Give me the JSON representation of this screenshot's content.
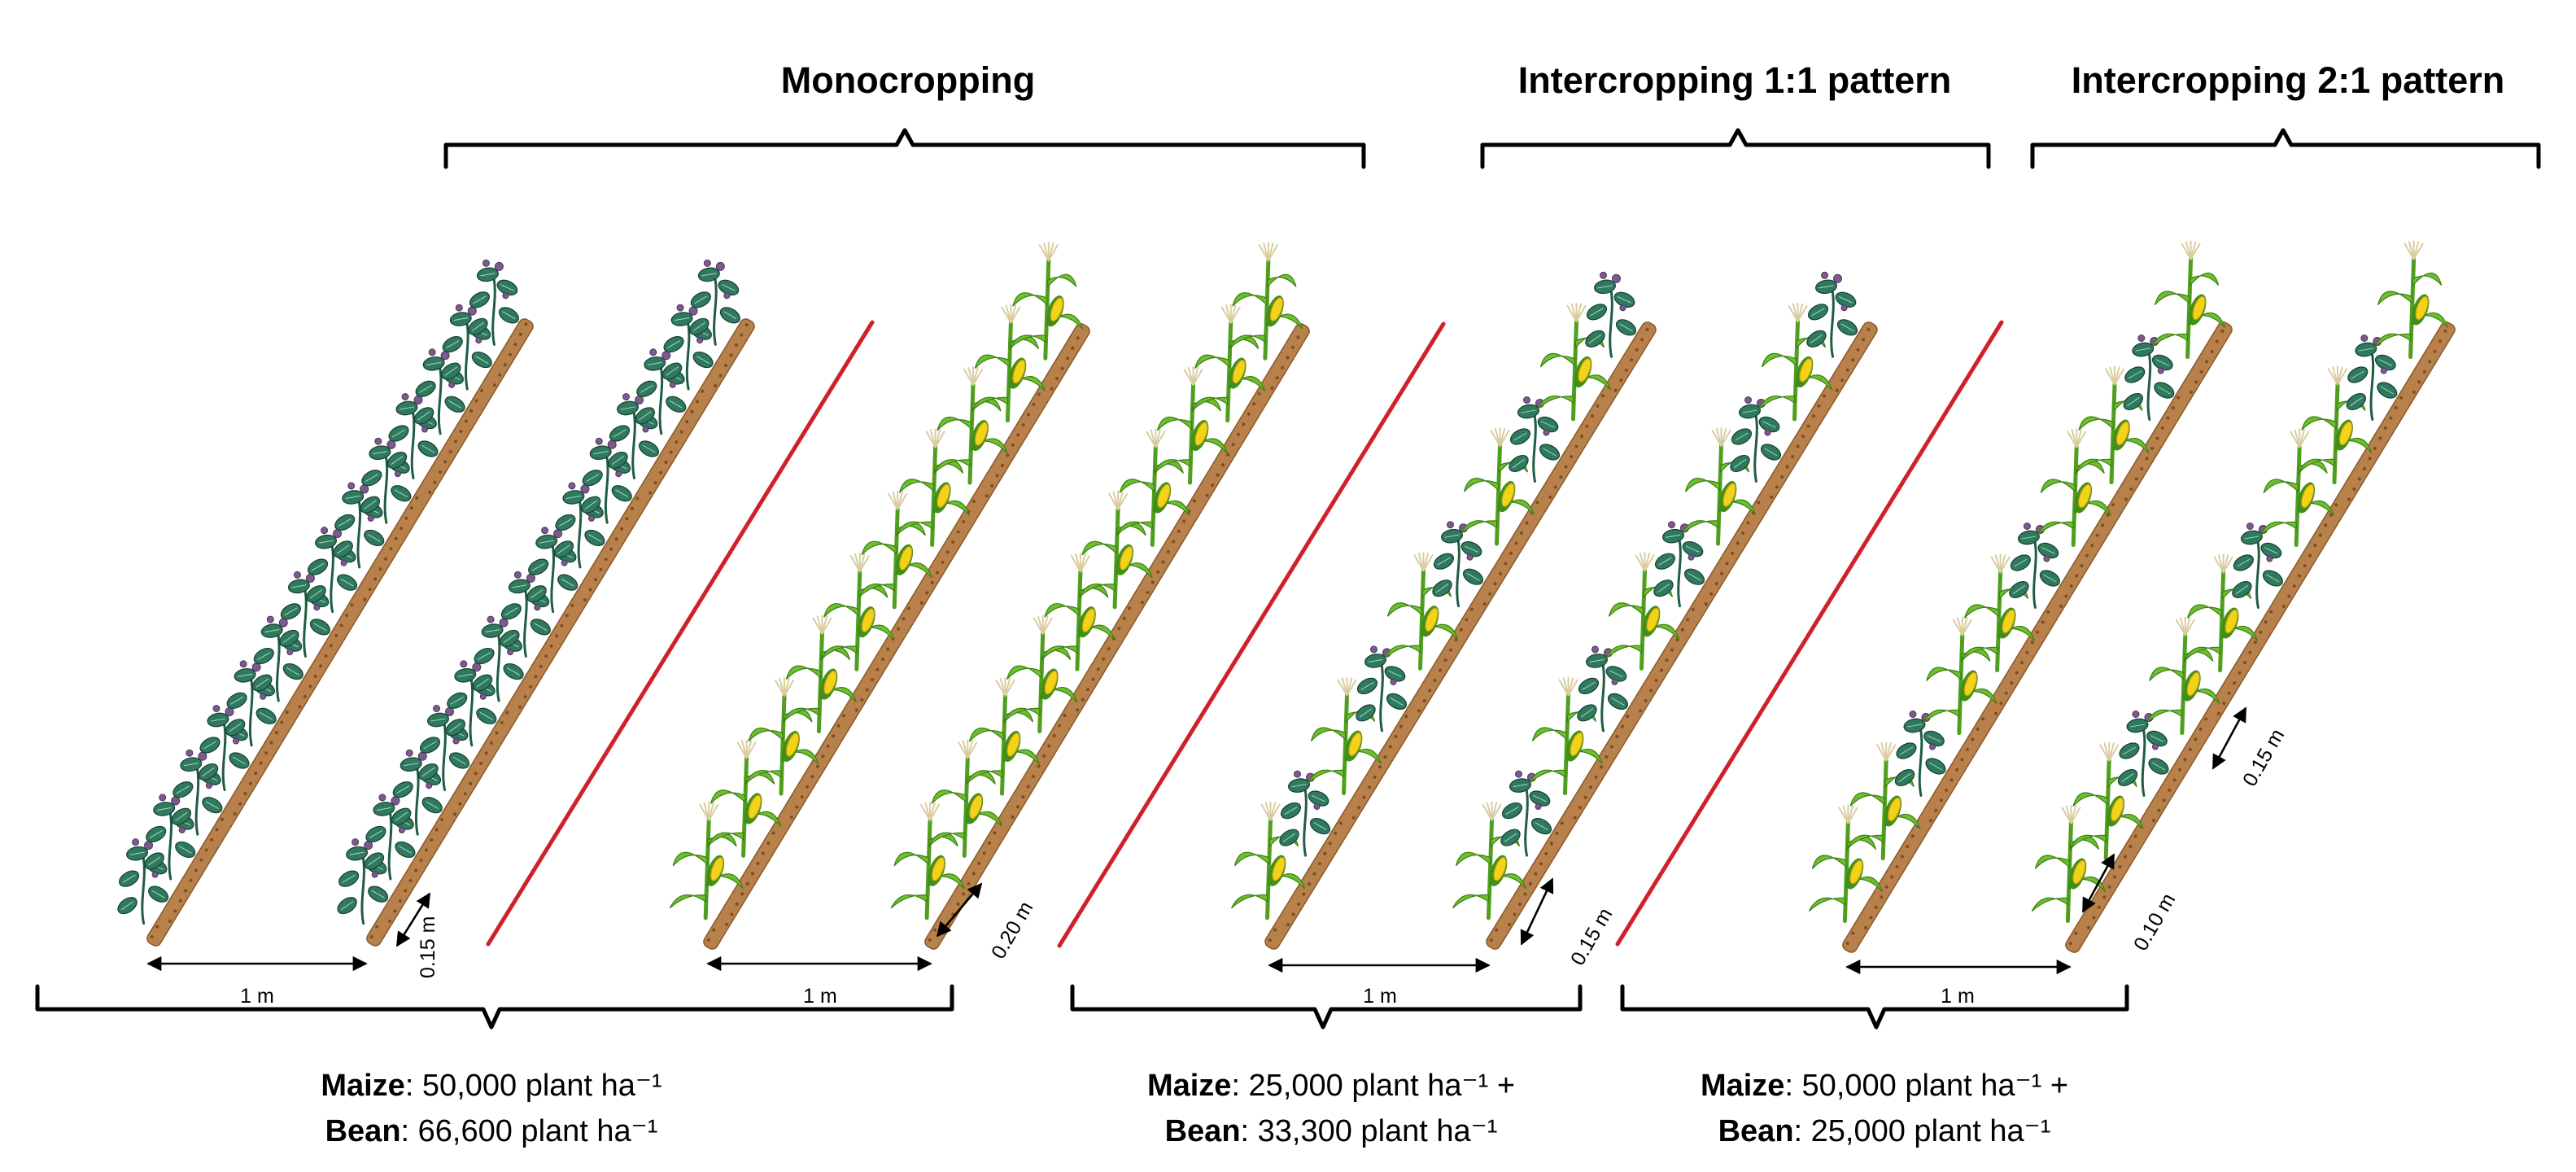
{
  "titles": {
    "monocropping": "Monocropping",
    "intercropping_1_1": "Intercropping 1:1 pattern",
    "intercropping_2_1": "Intercropping 2:1 pattern"
  },
  "measurements": {
    "row_width": "1 m",
    "bean_in_row_spacing": "0.15 m",
    "maize_in_row_spacing": "0.20 m",
    "intercrop_1_1_spacing": "0.15 m",
    "intercrop_2_1_bean_spacing": "0.15 m",
    "intercrop_2_1_maize_spacing": "0.10 m"
  },
  "densities": {
    "monocropping": {
      "maize_label": "Maize",
      "maize_value": ": 50,000 plant ha⁻¹",
      "bean_label": "Bean",
      "bean_value": ": 66,600 plant ha⁻¹"
    },
    "intercropping_1_1": {
      "maize_label": "Maize",
      "maize_value": ": 25,000 plant ha⁻¹ +",
      "bean_label": "Bean",
      "bean_value": ": 33,300 plant ha⁻¹"
    },
    "intercropping_2_1": {
      "maize_label": "Maize",
      "maize_value": ": 50,000 plant ha⁻¹ +",
      "bean_label": "Bean",
      "bean_value": ": 25,000 plant ha⁻¹"
    }
  },
  "colors": {
    "divider": "#d0202a",
    "soil": "#b8804a",
    "bean_leaf": "#2f7a5f",
    "bean_flower": "#7d5a8e",
    "maize_leaf": "#6cc02e",
    "maize_ear": "#f2d31a"
  }
}
